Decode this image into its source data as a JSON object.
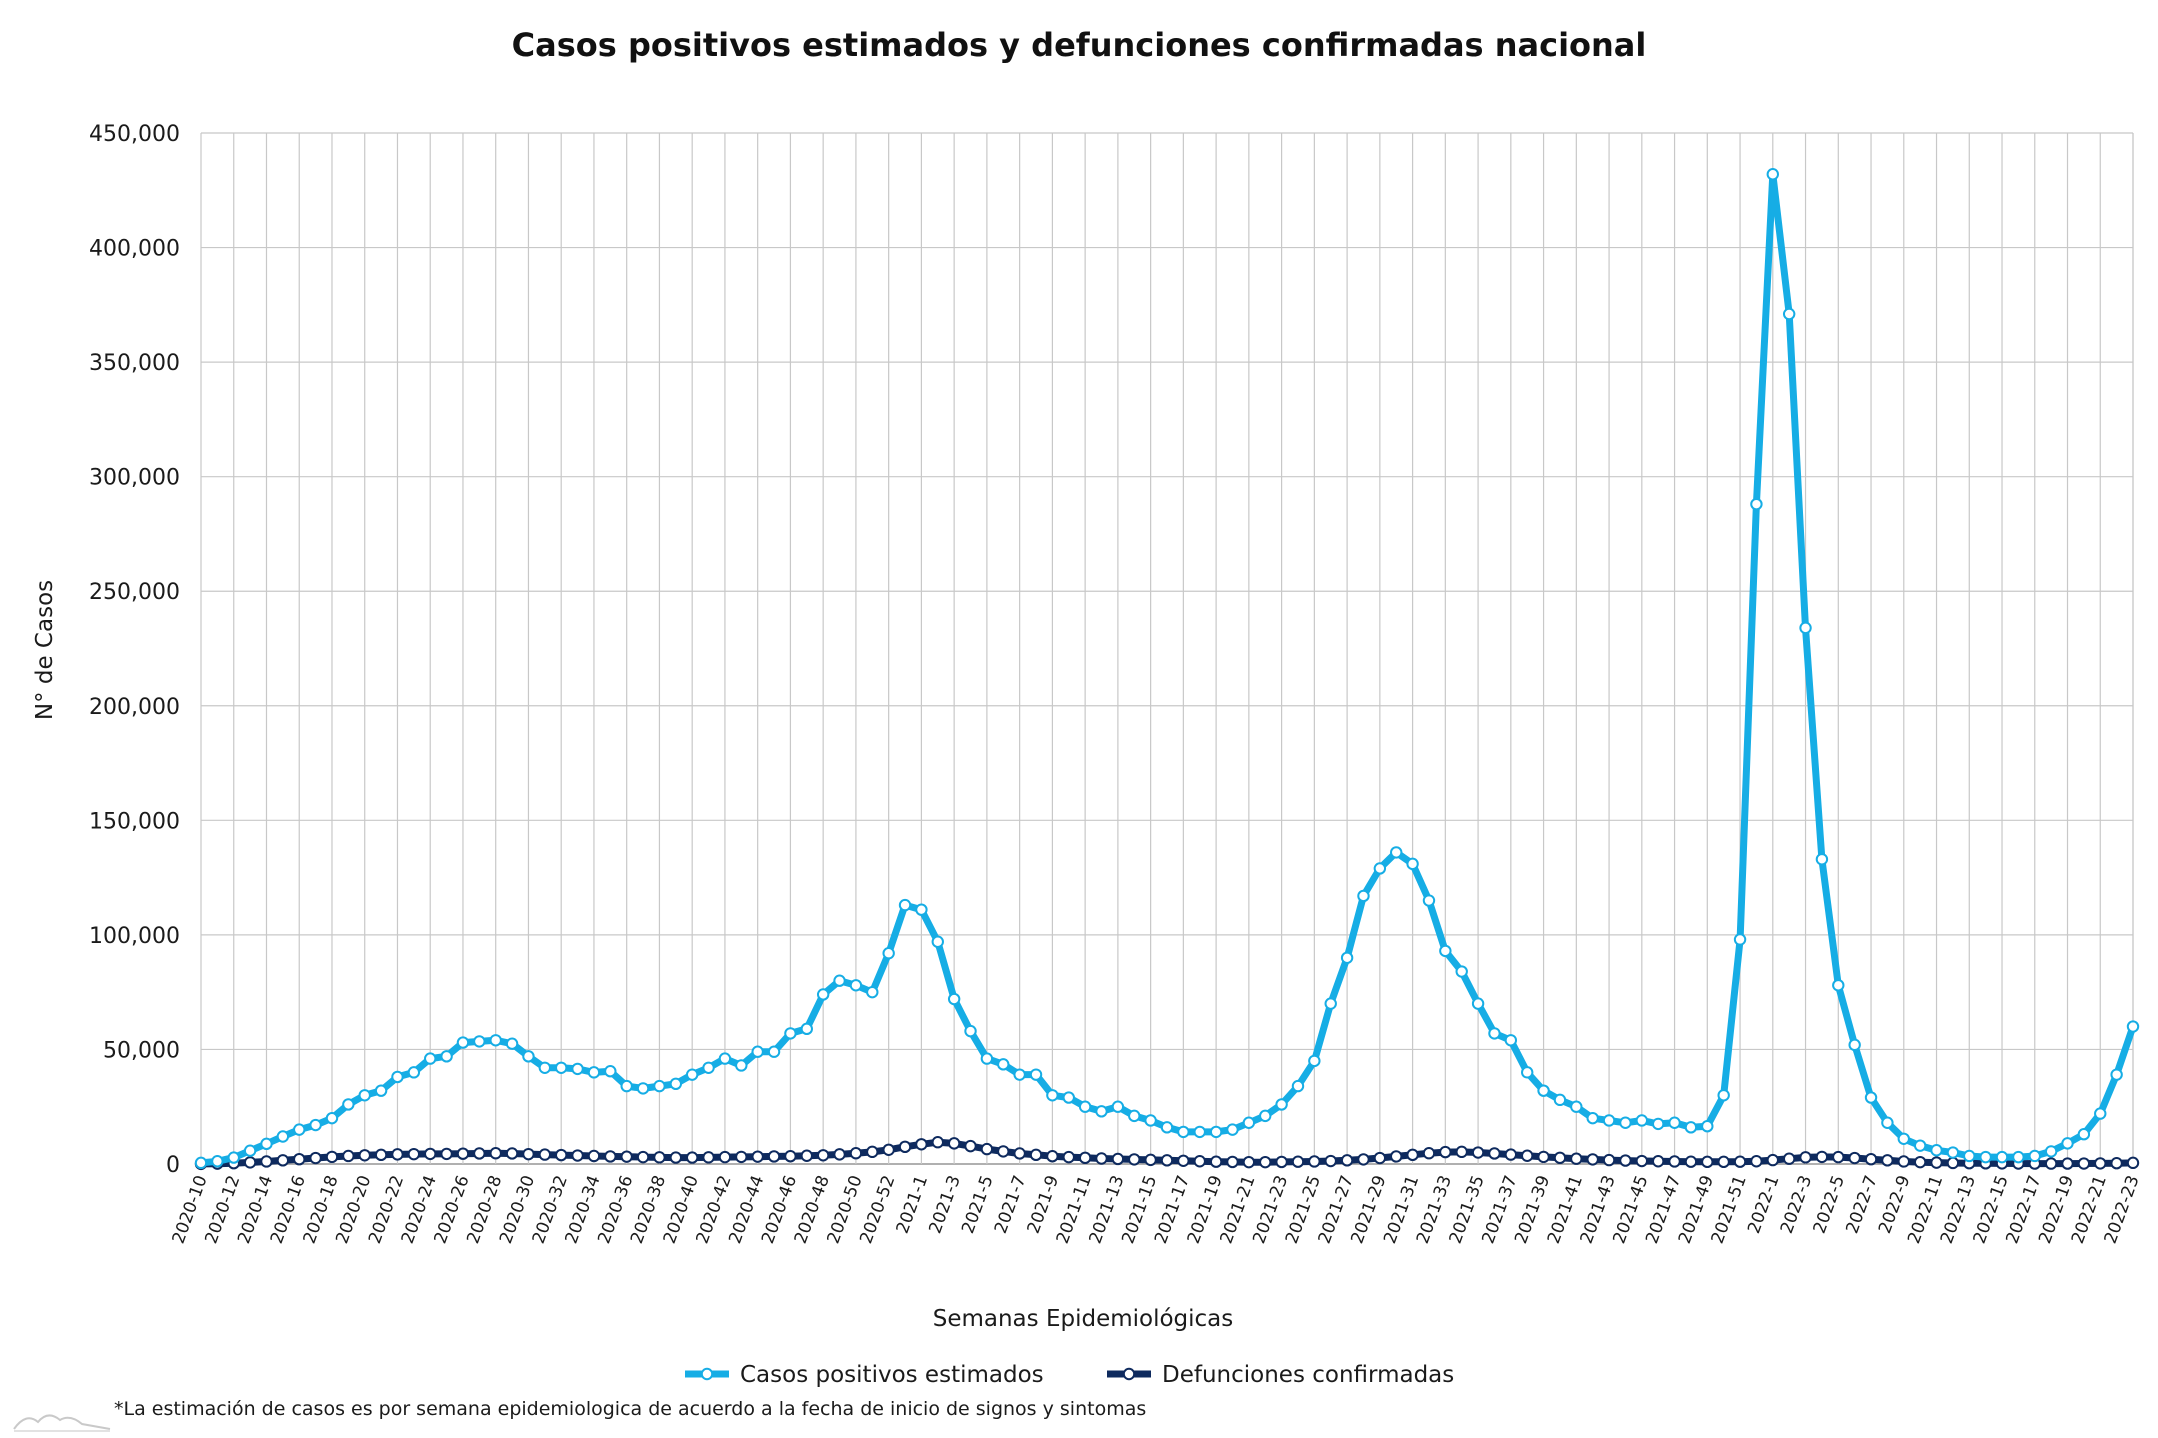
{
  "chart_data": {
    "type": "line",
    "title": "Casos positivos estimados y defunciones confirmadas nacional",
    "xlabel": "Semanas Epidemiológicas",
    "ylabel": "N° de Casos",
    "ylim": [
      0,
      450000
    ],
    "yticks": [
      0,
      50000,
      100000,
      150000,
      200000,
      250000,
      300000,
      350000,
      400000,
      450000
    ],
    "ytick_labels": [
      "0",
      "50,000",
      "100,000",
      "150,000",
      "200,000",
      "250,000",
      "300,000",
      "350,000",
      "400,000",
      "450,000"
    ],
    "xtick_labels": [
      "2020-10",
      "2020-12",
      "2020-14",
      "2020-16",
      "2020-18",
      "2020-20",
      "2020-22",
      "2020-24",
      "2020-26",
      "2020-28",
      "2020-30",
      "2020-32",
      "2020-34",
      "2020-36",
      "2020-38",
      "2020-40",
      "2020-42",
      "2020-44",
      "2020-46",
      "2020-48",
      "2020-50",
      "2020-52",
      "2021-1",
      "2021-3",
      "2021-5",
      "2021-7",
      "2021-9",
      "2021-11",
      "2021-13",
      "2021-15",
      "2021-17",
      "2021-19",
      "2021-21",
      "2021-23",
      "2021-25",
      "2021-27",
      "2021-29",
      "2021-31",
      "2021-33",
      "2021-35",
      "2021-37",
      "2021-39",
      "2021-41",
      "2021-43",
      "2021-45",
      "2021-47",
      "2021-49",
      "2021-51",
      "2022-1",
      "2022-3",
      "2022-5",
      "2022-7",
      "2022-9",
      "2022-11",
      "2022-13",
      "2022-15",
      "2022-17",
      "2022-19",
      "2022-21",
      "2022-23"
    ],
    "grid": true,
    "legend_position": "bottom",
    "series": [
      {
        "name": "Casos positivos estimados",
        "color": "#16ade5",
        "values": [
          500,
          1200,
          2800,
          5800,
          8800,
          12000,
          15000,
          17000,
          20000,
          26000,
          30000,
          32000,
          38000,
          40000,
          46000,
          47000,
          53000,
          53500,
          54000,
          52500,
          47000,
          42000,
          42000,
          41500,
          40000,
          40500,
          34000,
          33000,
          34000,
          35000,
          39000,
          42000,
          46000,
          43000,
          49000,
          49000,
          57000,
          59000,
          74000,
          80000,
          78000,
          75000,
          92000,
          113000,
          111000,
          97000,
          72000,
          58000,
          46000,
          43500,
          39000,
          39000,
          30000,
          29000,
          25000,
          23000,
          25000,
          21000,
          19000,
          16000,
          14000,
          14000,
          14000,
          15000,
          18000,
          21000,
          26000,
          34000,
          45000,
          70000,
          90000,
          117000,
          129000,
          136000,
          131000,
          115000,
          93000,
          84000,
          70000,
          57000,
          54000,
          40000,
          32000,
          28000,
          25000,
          20000,
          19000,
          18000,
          19000,
          17500,
          18000,
          16000,
          16500,
          30000,
          98000,
          288000,
          432000,
          371000,
          234000,
          133000,
          78000,
          52000,
          29000,
          18000,
          11000,
          8000,
          6000,
          5000,
          3500,
          3000,
          3000,
          3000,
          3500,
          5500,
          9000,
          13000,
          22000,
          39000,
          60000
        ]
      },
      {
        "name": "Defunciones confirmadas",
        "color": "#0e2a5e",
        "values": [
          50,
          150,
          350,
          700,
          1100,
          1600,
          2100,
          2600,
          3100,
          3500,
          3800,
          4000,
          4200,
          4300,
          4400,
          4400,
          4500,
          4600,
          4700,
          4600,
          4300,
          4100,
          3900,
          3700,
          3500,
          3300,
          3200,
          3000,
          2900,
          2800,
          2800,
          2900,
          3000,
          3100,
          3200,
          3300,
          3400,
          3600,
          3800,
          4200,
          4700,
          5300,
          6200,
          7500,
          8600,
          9500,
          9000,
          7800,
          6500,
          5500,
          4600,
          4000,
          3400,
          3000,
          2700,
          2400,
          2200,
          2000,
          1800,
          1600,
          1400,
          1200,
          1000,
          900,
          800,
          800,
          900,
          1000,
          1100,
          1300,
          1600,
          2000,
          2600,
          3300,
          4000,
          4700,
          5200,
          5300,
          5000,
          4600,
          4100,
          3600,
          3100,
          2700,
          2300,
          2000,
          1700,
          1500,
          1300,
          1200,
          1100,
          1000,
          950,
          950,
          1000,
          1200,
          1700,
          2300,
          2900,
          3100,
          3000,
          2600,
          2100,
          1600,
          1100,
          800,
          600,
          450,
          350,
          300,
          250,
          200,
          180,
          170,
          180,
          200,
          250,
          350,
          500
        ]
      }
    ]
  },
  "footnote": "*La estimación de casos es por semana epidemiologica de acuerdo a la fecha de inicio de signos y sintomas"
}
